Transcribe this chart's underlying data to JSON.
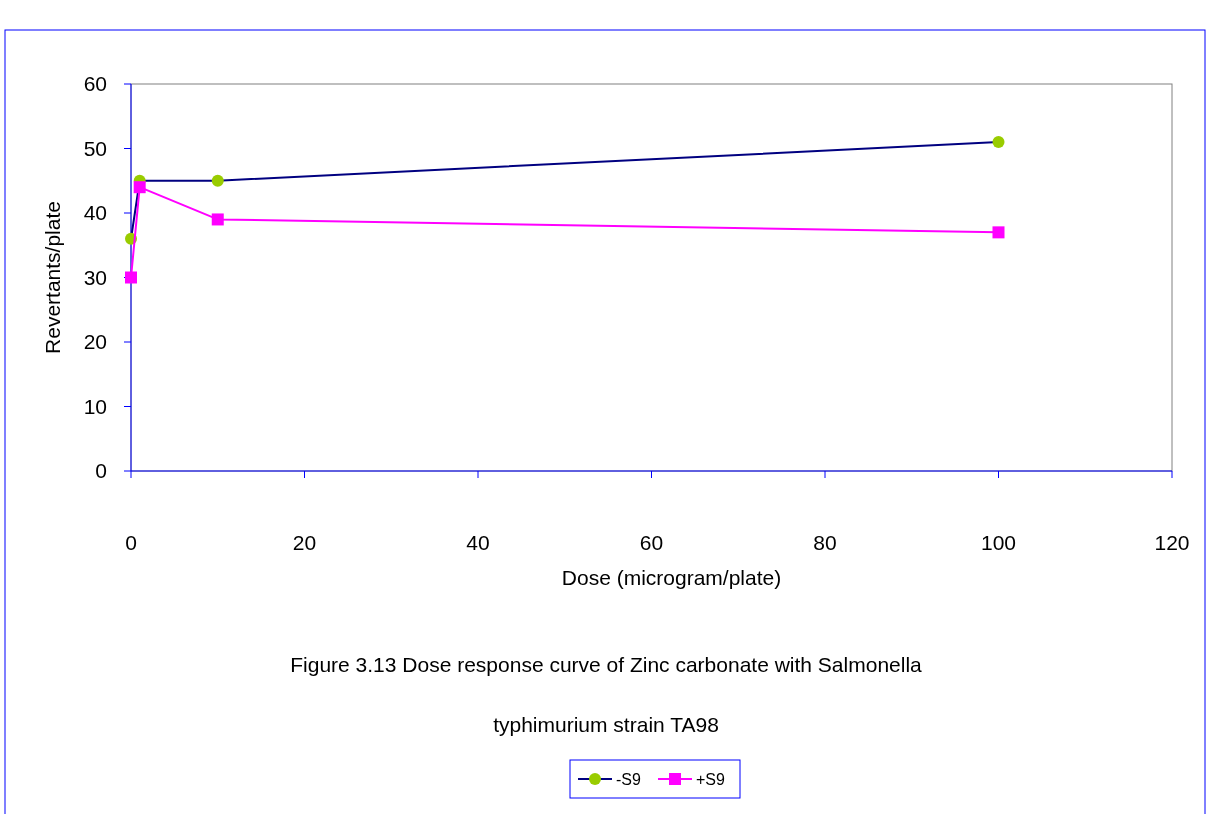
{
  "chart_data": {
    "type": "line",
    "title": "Figure 3.13 Dose response curve of Zinc carbonate with Salmonella typhimurium strain TA98",
    "xlabel": "Dose (microgram/plate)",
    "ylabel": "Revertants/plate",
    "x": [
      0,
      1,
      10,
      100
    ],
    "series": [
      {
        "name": "-S9",
        "color": "#000080",
        "colors": [
          "#99cc00",
          "#99cc00",
          "#99cc00",
          "#99cc00"
        ],
        "marker": "circle",
        "values": [
          36,
          45,
          45,
          51
        ]
      },
      {
        "name": "+S9",
        "color": "#ff00ff",
        "colors": [
          "#ff00ff",
          "#ff00ff",
          "#ff00ff",
          "#ff00ff"
        ],
        "marker": "square",
        "values": [
          30,
          44,
          39,
          37
        ]
      }
    ],
    "xlim": [
      0,
      120
    ],
    "xticks": [
      0,
      20,
      40,
      60,
      80,
      100,
      120
    ],
    "ylim": [
      0,
      60
    ],
    "yticks": [
      0,
      10,
      20,
      30,
      40,
      50,
      60
    ],
    "grid": false,
    "legend": "bottom",
    "line_style": "solid"
  }
}
